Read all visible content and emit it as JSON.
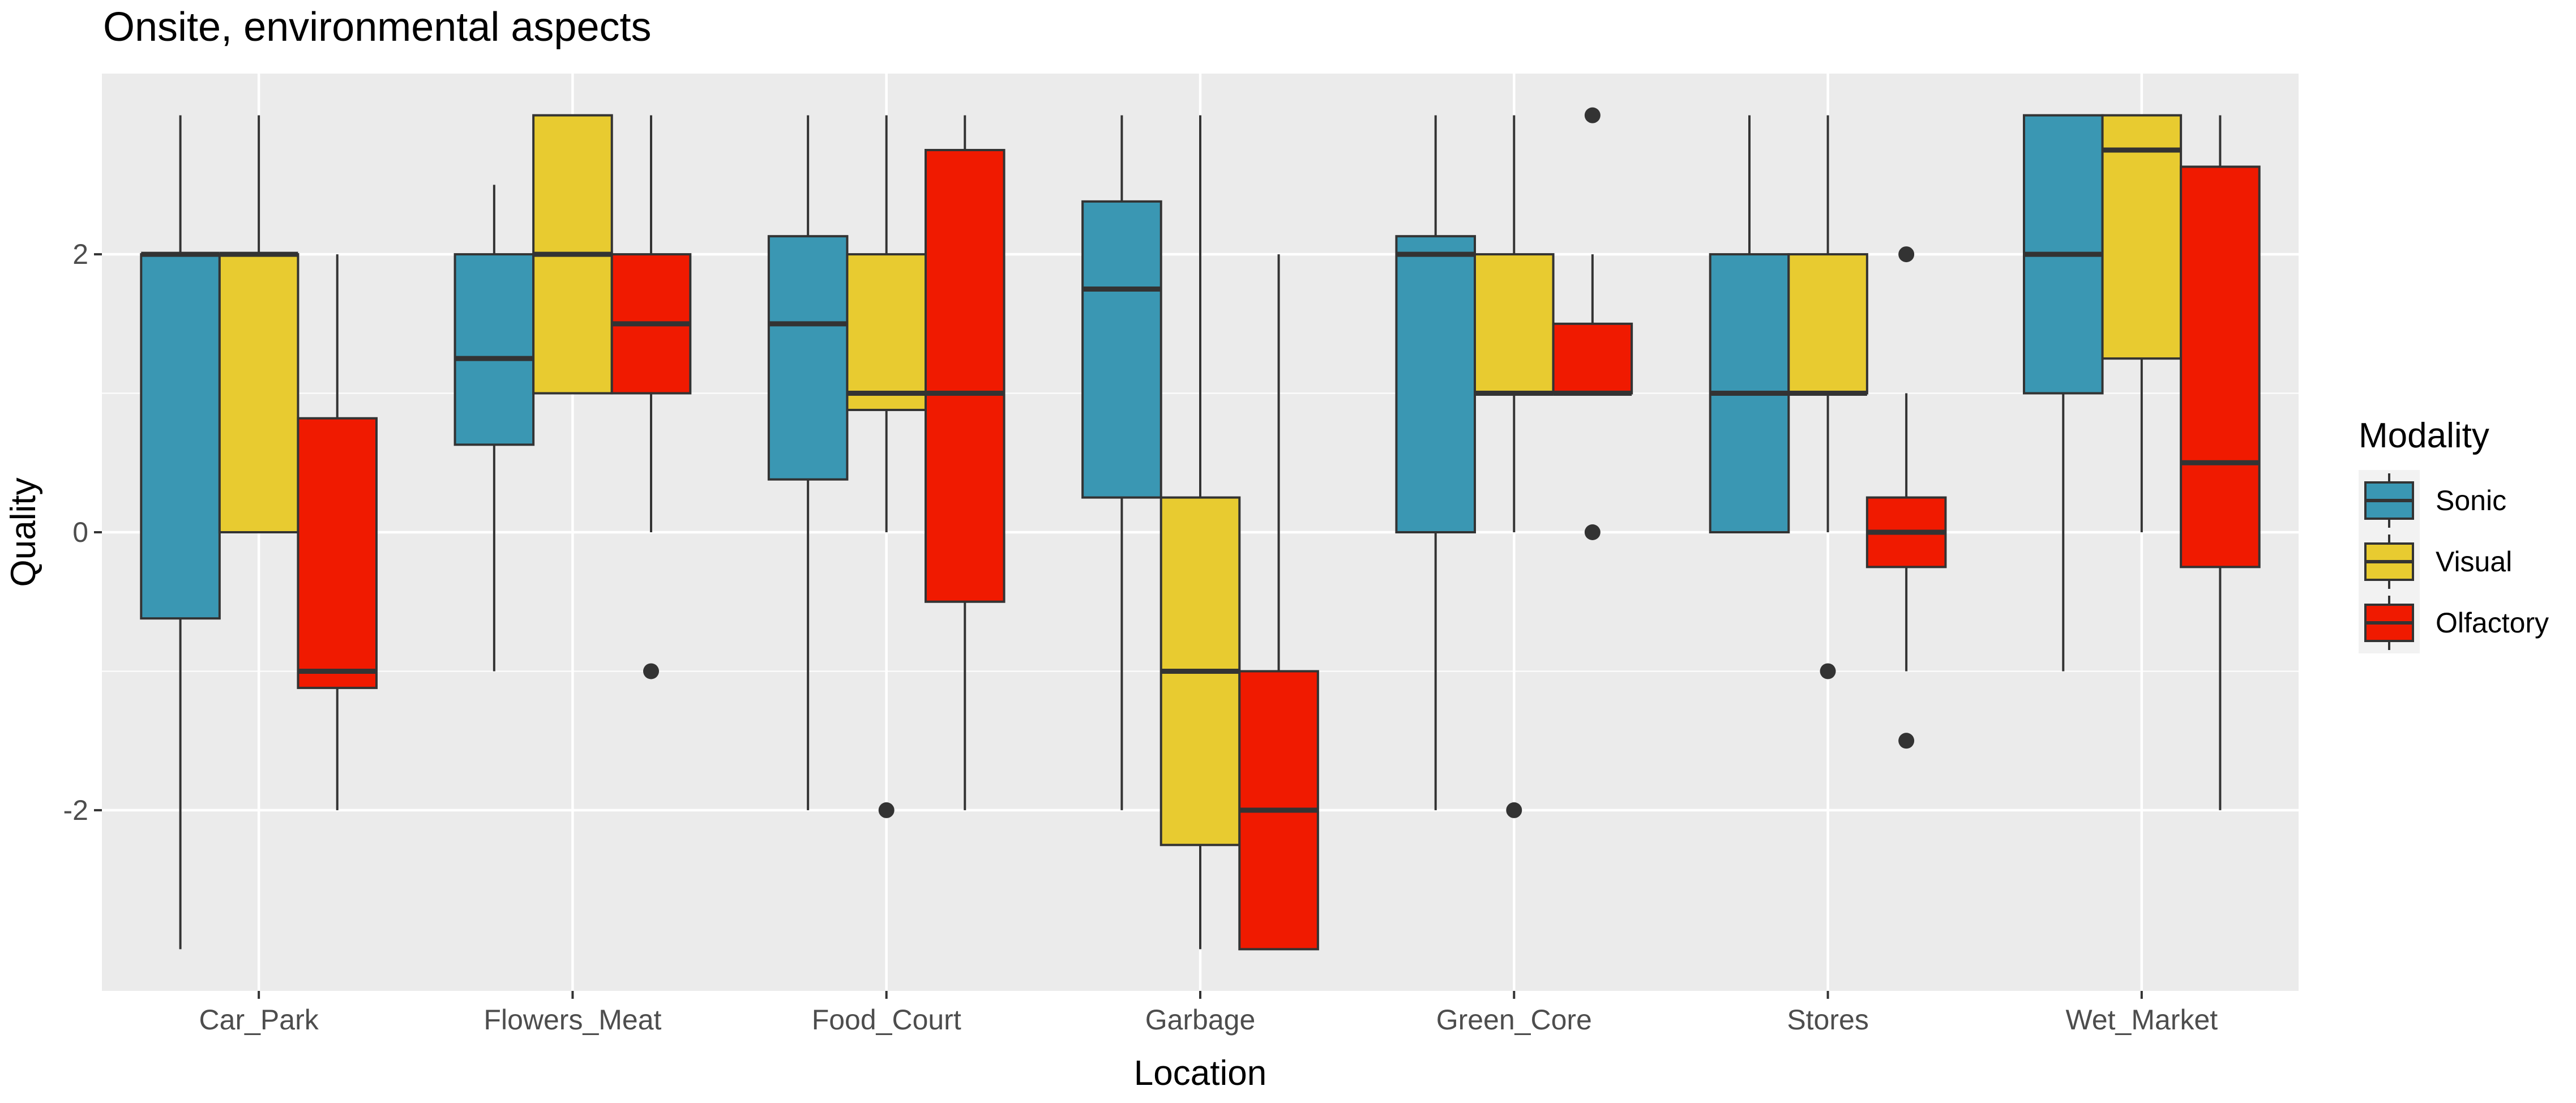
{
  "chart_data": {
    "type": "boxplot",
    "title": "Onsite, environmental aspects",
    "xlabel": "Location",
    "ylabel": "Quality",
    "ylim": [
      -3.3,
      3.3
    ],
    "y_ticks": [
      -2,
      0,
      2
    ],
    "grid": true,
    "legend_position": "right",
    "legend_title": "Modality",
    "categories": [
      "Car_Park",
      "Flowers_Meat",
      "Food_Court",
      "Garbage",
      "Green_Core",
      "Stores",
      "Wet_Market"
    ],
    "series": [
      {
        "name": "Sonic",
        "color": "#3a97b3",
        "boxes": [
          {
            "min": -3,
            "q1": -0.62,
            "median": 2,
            "q3": 2,
            "max": 3,
            "outliers": []
          },
          {
            "min": -1,
            "q1": 0.63,
            "median": 1.25,
            "q3": 2,
            "max": 2.5,
            "outliers": []
          },
          {
            "min": -2,
            "q1": 0.38,
            "median": 1.5,
            "q3": 2.13,
            "max": 3,
            "outliers": []
          },
          {
            "min": -2,
            "q1": 0.25,
            "median": 1.75,
            "q3": 2.38,
            "max": 3,
            "outliers": []
          },
          {
            "min": -2,
            "q1": 0,
            "median": 2,
            "q3": 2.13,
            "max": 3,
            "outliers": []
          },
          {
            "min": 0,
            "q1": 0,
            "median": 1,
            "q3": 2,
            "max": 3,
            "outliers": []
          },
          {
            "min": -1,
            "q1": 1,
            "median": 2,
            "q3": 3,
            "max": 3,
            "outliers": []
          }
        ]
      },
      {
        "name": "Visual",
        "color": "#e8cb30",
        "boxes": [
          {
            "min": 0,
            "q1": 0,
            "median": 2,
            "q3": 2,
            "max": 3,
            "outliers": []
          },
          {
            "min": 1,
            "q1": 1,
            "median": 2,
            "q3": 3,
            "max": 3,
            "outliers": []
          },
          {
            "min": 0,
            "q1": 0.88,
            "median": 1,
            "q3": 2,
            "max": 3,
            "outliers": [
              -2
            ]
          },
          {
            "min": -3,
            "q1": -2.25,
            "median": -1,
            "q3": 0.25,
            "max": 3,
            "outliers": []
          },
          {
            "min": 0,
            "q1": 1,
            "median": 1,
            "q3": 2,
            "max": 3,
            "outliers": [
              -2
            ]
          },
          {
            "min": 0,
            "q1": 1,
            "median": 1,
            "q3": 2,
            "max": 3,
            "outliers": [
              -1
            ]
          },
          {
            "min": 0,
            "q1": 1.25,
            "median": 2.75,
            "q3": 3,
            "max": 3,
            "outliers": []
          }
        ]
      },
      {
        "name": "Olfactory",
        "color": "#f01a00",
        "boxes": [
          {
            "min": -2,
            "q1": -1.12,
            "median": -1,
            "q3": 0.82,
            "max": 2,
            "outliers": []
          },
          {
            "min": 0,
            "q1": 1,
            "median": 1.5,
            "q3": 2,
            "max": 3,
            "outliers": [
              -1
            ]
          },
          {
            "min": -2,
            "q1": -0.5,
            "median": 1,
            "q3": 2.75,
            "max": 3,
            "outliers": []
          },
          {
            "min": -3,
            "q1": -3,
            "median": -2,
            "q3": -1,
            "max": 2,
            "outliers": []
          },
          {
            "min": 1,
            "q1": 1,
            "median": 1,
            "q3": 1.5,
            "max": 2,
            "outliers": [
              3,
              0
            ]
          },
          {
            "min": -1,
            "q1": -0.25,
            "median": 0,
            "q3": 0.25,
            "max": 1,
            "outliers": [
              2,
              -1.5
            ]
          },
          {
            "min": -2,
            "q1": -0.25,
            "median": 0.5,
            "q3": 2.63,
            "max": 3,
            "outliers": []
          }
        ]
      }
    ]
  }
}
